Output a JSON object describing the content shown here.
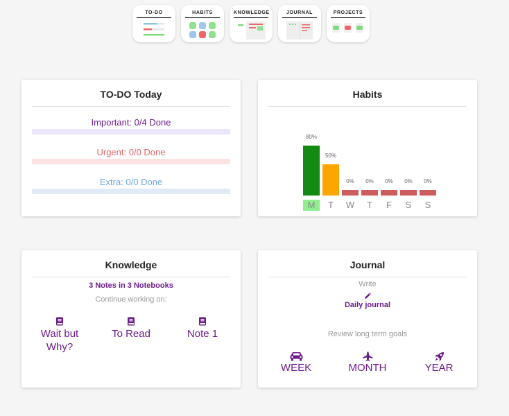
{
  "nav": {
    "todo": "TO-DO",
    "habits": "HABITS",
    "knowledge": "KNOWLEDGE",
    "journal": "JOURNAL",
    "projects": "PROJECTS"
  },
  "todo_card": {
    "title": "TO-DO Today",
    "important": "Important: 0/4 Done",
    "urgent": "Urgent: 0/0 Done",
    "extra": "Extra: 0/0 Done"
  },
  "habits_card": {
    "title": "Habits",
    "days": [
      {
        "day": "M",
        "pct": "80%",
        "value": 80,
        "color": "#138a13"
      },
      {
        "day": "T",
        "pct": "50%",
        "value": 50,
        "color": "#ffa500"
      },
      {
        "day": "W",
        "pct": "0%",
        "value": 0,
        "color": "#cd5c5c"
      },
      {
        "day": "T",
        "pct": "0%",
        "value": 0,
        "color": "#cd5c5c"
      },
      {
        "day": "F",
        "pct": "0%",
        "value": 0,
        "color": "#cd5c5c"
      },
      {
        "day": "S",
        "pct": "0%",
        "value": 0,
        "color": "#cd5c5c"
      },
      {
        "day": "S",
        "pct": "0%",
        "value": 0,
        "color": "#cd5c5c"
      }
    ],
    "current_day_highlight": "#90ee90"
  },
  "knowledge_card": {
    "title": "Knowledge",
    "summary": "3 Notes in 3 Notebooks",
    "continue_label": "Continue working on:",
    "notes": [
      "Wait but Why?",
      "To Read",
      "Note 1"
    ],
    "note_icon": "book-icon"
  },
  "journal_card": {
    "title": "Journal",
    "write_label": "Write",
    "daily_journal": "Daily journal",
    "review_label": "Review long term goals",
    "goals": [
      {
        "label": "WEEK",
        "icon": "car-icon"
      },
      {
        "label": "MONTH",
        "icon": "plane-icon"
      },
      {
        "label": "YEAR",
        "icon": "rocket-icon"
      }
    ]
  },
  "colors": {
    "accent_purple": "#6a1b8a",
    "important_bg": "#ebe6fb",
    "urgent_bg": "#fbe3e3",
    "extra_bg": "#e1ebf7",
    "urgent_text": "#e06666",
    "extra_text": "#6fa8dc"
  }
}
